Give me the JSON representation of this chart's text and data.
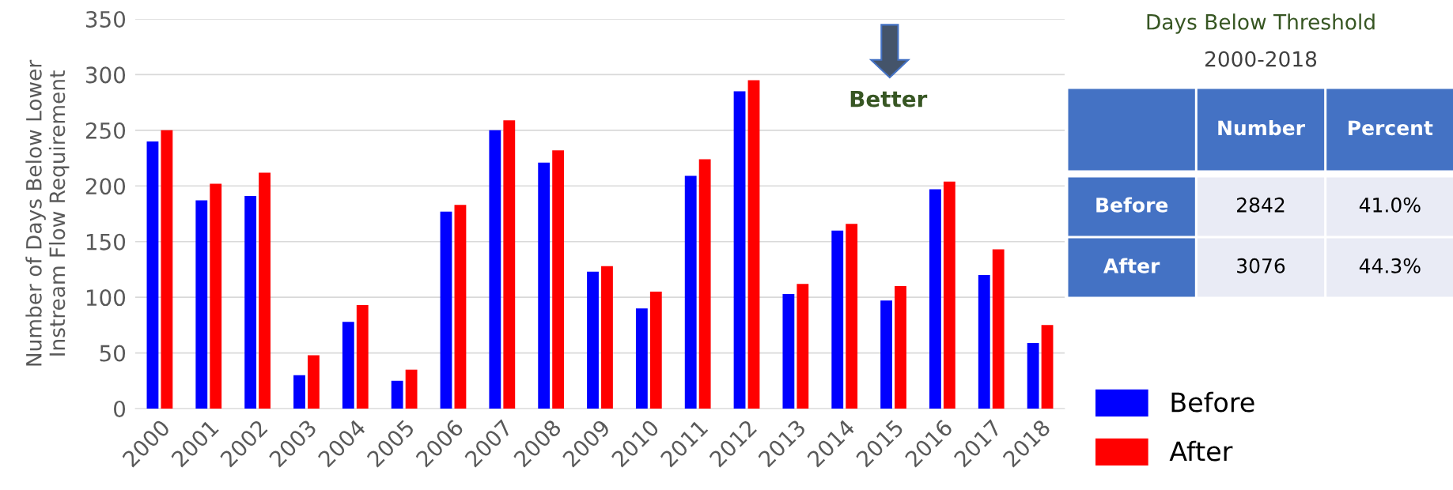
{
  "chart_data": [
    {
      "type": "bar",
      "ylabel": "Number of Days Below Lower\nInstream Flow Requirement",
      "categories": [
        "2000",
        "2001",
        "2002",
        "2003",
        "2004",
        "2005",
        "2006",
        "2007",
        "2008",
        "2009",
        "2010",
        "2011",
        "2012",
        "2013",
        "2014",
        "2015",
        "2016",
        "2017",
        "2018"
      ],
      "series": [
        {
          "name": "Before",
          "color": "#0000ff",
          "values": [
            240,
            187,
            191,
            30,
            78,
            25,
            177,
            250,
            221,
            123,
            90,
            209,
            285,
            103,
            160,
            97,
            197,
            120,
            59
          ]
        },
        {
          "name": "After",
          "color": "#ff0000",
          "values": [
            250,
            202,
            212,
            48,
            93,
            35,
            183,
            259,
            232,
            128,
            105,
            224,
            295,
            112,
            166,
            110,
            204,
            143,
            75
          ]
        }
      ],
      "ylim": [
        0,
        350
      ],
      "yticks": [
        0,
        50,
        100,
        150,
        200,
        250,
        300,
        350
      ],
      "grid": "y",
      "legend": "bottom right",
      "annotations": [
        "Better"
      ]
    },
    {
      "type": "other",
      "title": "Days Below Threshold",
      "subtitle": "2000-2018",
      "categories": [
        "Number",
        "Percent"
      ],
      "y_categories": [
        "Before",
        "After"
      ],
      "cell_labels": [
        [
          "2842",
          "41.0%"
        ],
        [
          "3076",
          "44.3%"
        ]
      ]
    }
  ]
}
